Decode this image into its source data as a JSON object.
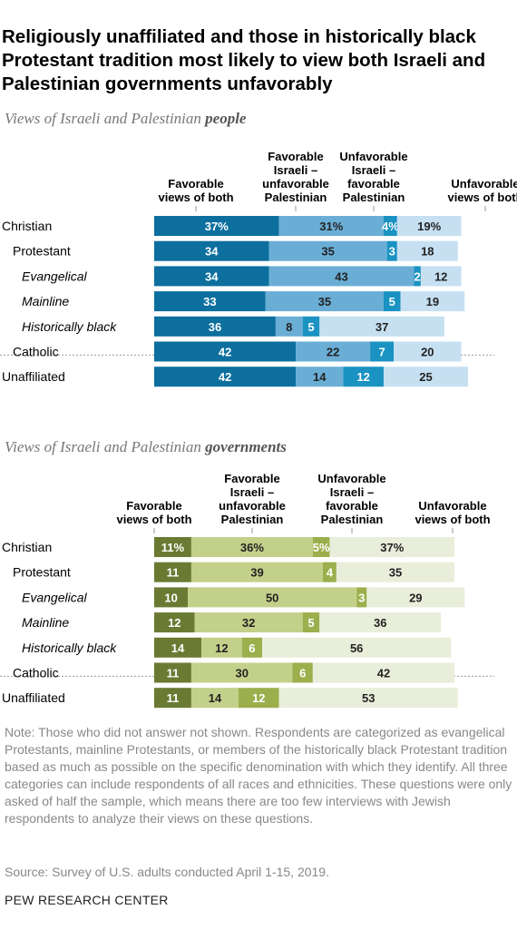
{
  "title": "Religiously unaffiliated and those in historically black Protestant tradition most likely to view both Israeli and Palestinian governments unfavorably",
  "subtitle1": {
    "plain": "Views of Israeli and Palestinian ",
    "emph": "people"
  },
  "subtitle2": {
    "plain": "Views of Israeli and Palestinian ",
    "emph": "governments"
  },
  "note": "Note: Those who did not answer not shown. Respondents are categorized as evangelical Protestants, mainline Protestants, or members of the historically black Protestant tradition based as much as possible on the specific denomination with which they identify. All three categories can include respondents of all races and ethnicities. These questions were only asked of half the sample, which means there are too few interviews with Jewish respondents to analyze their views on these questions.",
  "source": "Source: Survey of U.S. adults conducted April 1-15, 2019.",
  "footer": "PEW RESEARCH CENTER",
  "chart_data": [
    {
      "type": "bar",
      "stacked": true,
      "orientation": "horizontal",
      "title": "Views of Israeli and Palestinian people",
      "categories": [
        "Christian",
        "Protestant",
        "Evangelical",
        "Mainline",
        "Historically black",
        "Catholic",
        "Unaffiliated"
      ],
      "category_style": [
        "plain",
        "plain",
        "italic",
        "italic",
        "italic",
        "plain",
        "plain"
      ],
      "category_indent": [
        0,
        1,
        2,
        2,
        2,
        1,
        0
      ],
      "series": [
        {
          "name": "Favorable views of both",
          "header_lines": [
            "Favorable",
            "views of both"
          ],
          "color": "#0c6f9e",
          "values": [
            37,
            34,
            34,
            33,
            36,
            42,
            42
          ]
        },
        {
          "name": "Favorable Israeli – unfavorable Palestinian",
          "header_lines": [
            "Favorable",
            "Israeli –",
            "unfavorable",
            "Palestinian"
          ],
          "color": "#6aaed6",
          "values": [
            31,
            35,
            43,
            35,
            8,
            22,
            14
          ]
        },
        {
          "name": "Unfavorable Israeli – favorable Palestinian",
          "header_lines": [
            "Unfavorable",
            "Israeli –",
            "favorable",
            "Palestinian"
          ],
          "color": "#1a92c2",
          "values": [
            4,
            3,
            2,
            5,
            5,
            7,
            12
          ]
        },
        {
          "name": "Unfavorable views of both",
          "header_lines": [
            "Unfavorable",
            "views of both"
          ],
          "color": "#c6e0f2",
          "values": [
            19,
            18,
            12,
            19,
            37,
            20,
            25
          ]
        }
      ],
      "value_labels": {
        "Christian": [
          "37%",
          "31%",
          "4%",
          "19%"
        ]
      }
    },
    {
      "type": "bar",
      "stacked": true,
      "orientation": "horizontal",
      "title": "Views of Israeli and Palestinian governments",
      "categories": [
        "Christian",
        "Protestant",
        "Evangelical",
        "Mainline",
        "Historically black",
        "Catholic",
        "Unaffiliated"
      ],
      "category_style": [
        "plain",
        "plain",
        "italic",
        "italic",
        "italic",
        "plain",
        "plain"
      ],
      "category_indent": [
        0,
        1,
        2,
        2,
        2,
        1,
        0
      ],
      "series": [
        {
          "name": "Favorable views of both",
          "header_lines": [
            "Favorable",
            "views of both"
          ],
          "color": "#6b7a33",
          "values": [
            11,
            11,
            10,
            12,
            14,
            11,
            11
          ]
        },
        {
          "name": "Favorable Israeli – unfavorable Palestinian",
          "header_lines": [
            "Favorable",
            "Israeli –",
            "unfavorable",
            "Palestinian"
          ],
          "color": "#c3d08a",
          "values": [
            36,
            39,
            50,
            32,
            12,
            30,
            14
          ]
        },
        {
          "name": "Unfavorable Israeli – favorable Palestinian",
          "header_lines": [
            "Unfavorable",
            "Israeli –",
            "favorable",
            "Palestinian"
          ],
          "color": "#9caf4c",
          "values": [
            5,
            4,
            3,
            5,
            6,
            6,
            12
          ]
        },
        {
          "name": "Unfavorable views of both",
          "header_lines": [
            "Unfavorable",
            "views of both"
          ],
          "color": "#e9eedb",
          "values": [
            37,
            35,
            29,
            36,
            56,
            42,
            53
          ]
        }
      ],
      "value_labels": {
        "Christian": [
          "11%",
          "36%",
          "5%",
          "37%"
        ]
      }
    }
  ]
}
